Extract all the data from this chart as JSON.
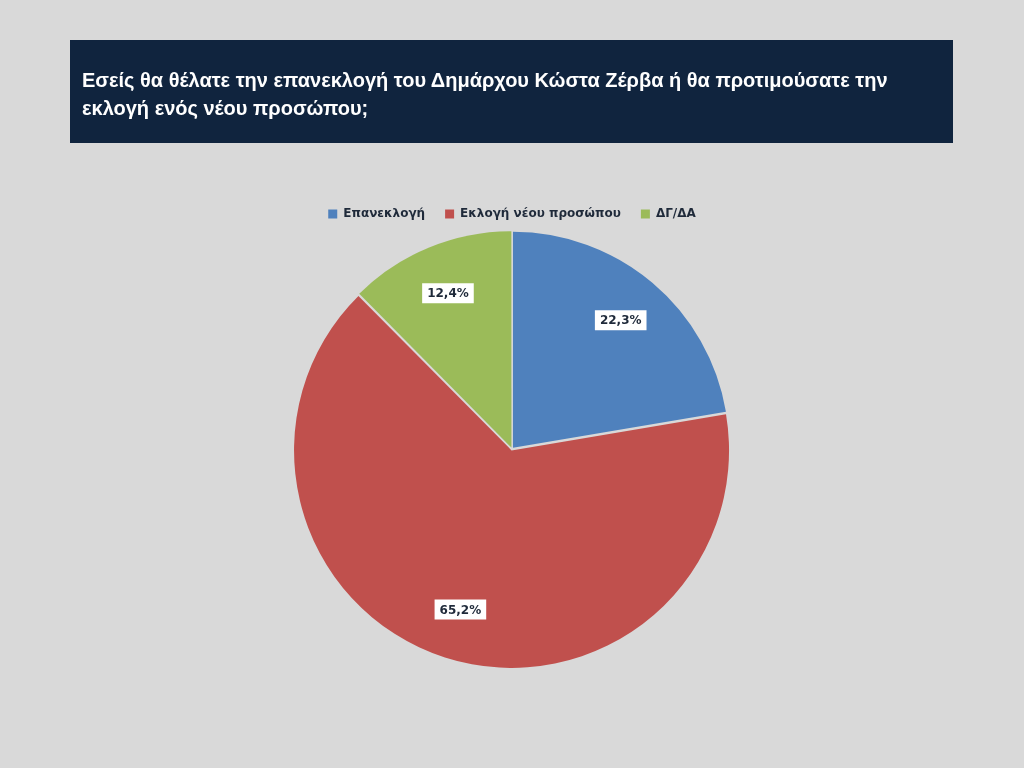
{
  "chart_data": {
    "type": "pie",
    "title": "Εσείς θα θέλατε την επανεκλογή του Δημάρχου Κώστα Ζέρβα ή θα προτιμούσατε την εκλογή ενός νέου προσώπου;",
    "categories": [
      "Επανεκλογή",
      "Εκλογή νέου προσώπου",
      "ΔΓ/ΔΑ"
    ],
    "values": [
      22.3,
      65.2,
      12.4
    ],
    "colors": [
      "#4f81bd",
      "#c0504d",
      "#9bbb59"
    ],
    "value_labels": [
      "22,3%",
      "65,2%",
      "12,4%"
    ],
    "legend": "top"
  }
}
